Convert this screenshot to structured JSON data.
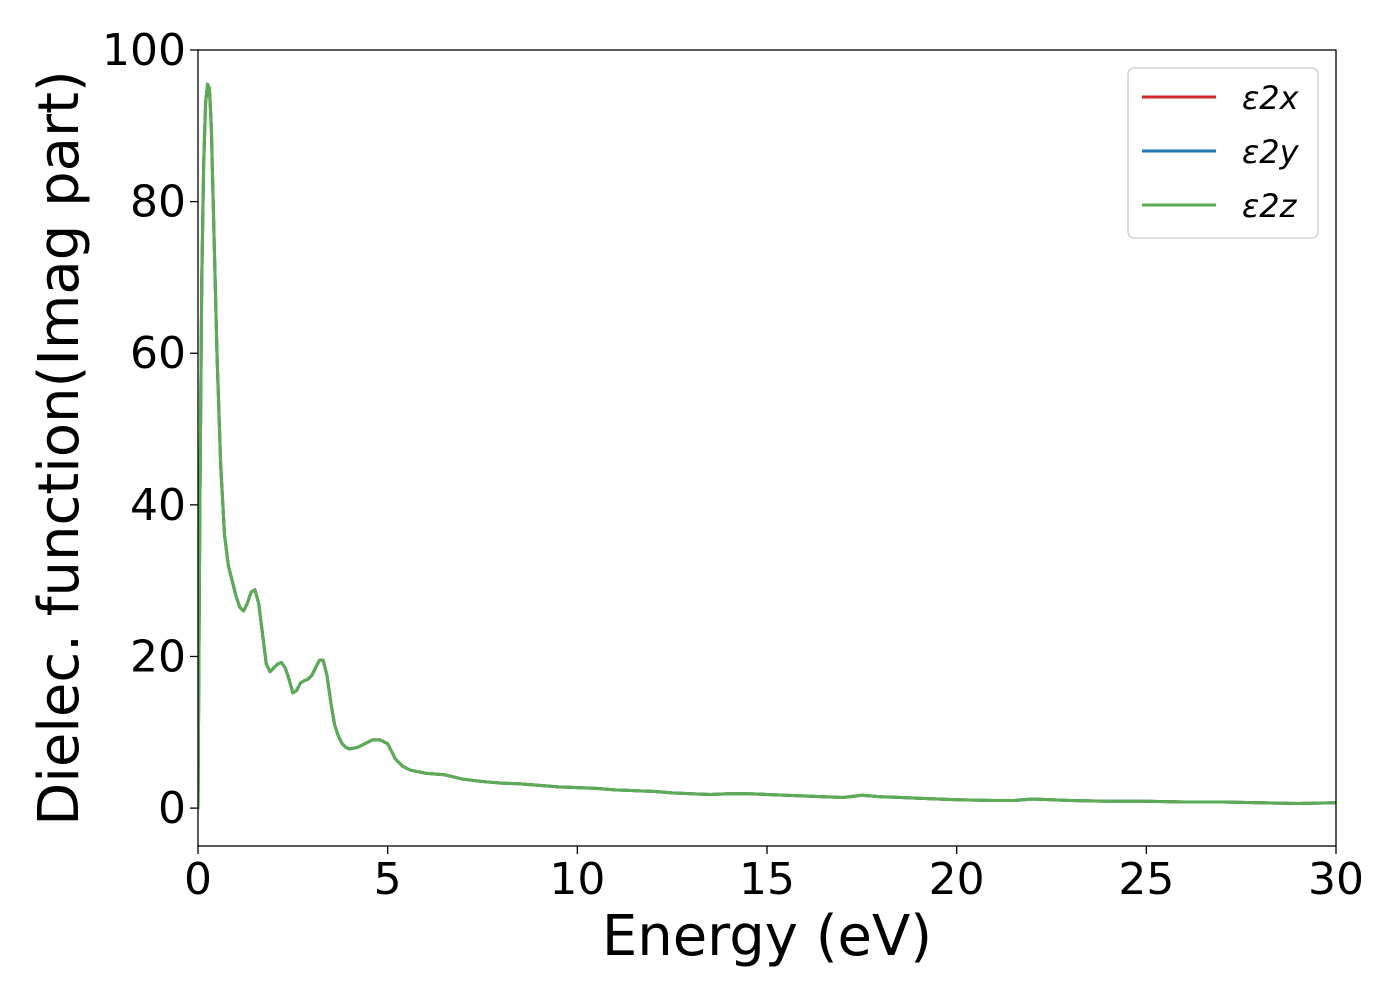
{
  "chart_data": {
    "type": "line",
    "title": "",
    "xlabel": "Energy (eV)",
    "ylabel": "Dielec. function(Imag part)",
    "xlim": [
      0,
      30
    ],
    "ylim": [
      -5,
      100
    ],
    "xticks": [
      0,
      5,
      10,
      15,
      20,
      25,
      30
    ],
    "yticks": [
      0,
      20,
      40,
      60,
      80,
      100
    ],
    "grid": false,
    "legend_position": "top-right",
    "series": [
      {
        "name": "ε2x",
        "color": "#d62728",
        "x": [
          0,
          0.05,
          0.1,
          0.15,
          0.2,
          0.25,
          0.3,
          0.35,
          0.4,
          0.5,
          0.6,
          0.7,
          0.8,
          0.9,
          1.0,
          1.1,
          1.2,
          1.3,
          1.4,
          1.5,
          1.6,
          1.7,
          1.8,
          1.9,
          2.0,
          2.1,
          2.2,
          2.3,
          2.4,
          2.5,
          2.6,
          2.7,
          2.8,
          2.9,
          3.0,
          3.1,
          3.2,
          3.3,
          3.4,
          3.5,
          3.6,
          3.7,
          3.8,
          3.9,
          4.0,
          4.2,
          4.4,
          4.6,
          4.8,
          5.0,
          5.1,
          5.2,
          5.4,
          5.6,
          5.8,
          6.0,
          6.5,
          7.0,
          7.5,
          8.0,
          8.5,
          9.0,
          9.5,
          10.0,
          10.5,
          11.0,
          11.5,
          12.0,
          12.5,
          13.0,
          13.5,
          14.0,
          14.5,
          15.0,
          15.5,
          16.0,
          16.5,
          17.0,
          17.5,
          18.0,
          19.0,
          20.0,
          21.0,
          21.5,
          22.0,
          23.0,
          24.0,
          25.0,
          26.0,
          27.0,
          28.0,
          29.0,
          30.0
        ],
        "y": [
          0,
          40,
          70,
          85,
          93,
          95.5,
          95,
          90,
          80,
          60,
          45,
          36,
          32,
          30,
          28,
          26.5,
          26,
          27,
          28.5,
          28.8,
          27,
          23,
          19,
          18,
          18.5,
          19,
          19.2,
          18.5,
          17,
          15.2,
          15.5,
          16.5,
          16.8,
          17,
          17.5,
          18.5,
          19.5,
          19.5,
          17.5,
          14,
          11,
          9.5,
          8.5,
          8,
          7.8,
          8,
          8.5,
          9,
          9,
          8.5,
          7.5,
          6.5,
          5.5,
          5,
          4.8,
          4.6,
          4.4,
          3.8,
          3.5,
          3.3,
          3.2,
          3.0,
          2.8,
          2.7,
          2.6,
          2.4,
          2.3,
          2.2,
          2.0,
          1.9,
          1.8,
          1.9,
          1.9,
          1.8,
          1.7,
          1.6,
          1.5,
          1.4,
          1.7,
          1.5,
          1.3,
          1.1,
          1.0,
          1.0,
          1.2,
          1.0,
          0.9,
          0.9,
          0.8,
          0.8,
          0.7,
          0.6,
          0.7
        ]
      },
      {
        "name": "ε2y",
        "color": "#1f77b4",
        "x": [
          0,
          0.05,
          0.1,
          0.15,
          0.2,
          0.25,
          0.3,
          0.35,
          0.4,
          0.5,
          0.6,
          0.7,
          0.8,
          0.9,
          1.0,
          1.1,
          1.2,
          1.3,
          1.4,
          1.5,
          1.6,
          1.7,
          1.8,
          1.9,
          2.0,
          2.1,
          2.2,
          2.3,
          2.4,
          2.5,
          2.6,
          2.7,
          2.8,
          2.9,
          3.0,
          3.1,
          3.2,
          3.3,
          3.4,
          3.5,
          3.6,
          3.7,
          3.8,
          3.9,
          4.0,
          4.2,
          4.4,
          4.6,
          4.8,
          5.0,
          5.1,
          5.2,
          5.4,
          5.6,
          5.8,
          6.0,
          6.5,
          7.0,
          7.5,
          8.0,
          8.5,
          9.0,
          9.5,
          10.0,
          10.5,
          11.0,
          11.5,
          12.0,
          12.5,
          13.0,
          13.5,
          14.0,
          14.5,
          15.0,
          15.5,
          16.0,
          16.5,
          17.0,
          17.5,
          18.0,
          19.0,
          20.0,
          21.0,
          21.5,
          22.0,
          23.0,
          24.0,
          25.0,
          26.0,
          27.0,
          28.0,
          29.0,
          30.0
        ],
        "y": [
          0,
          40,
          70,
          85,
          93,
          95.5,
          95,
          90,
          80,
          60,
          45,
          36,
          32,
          30,
          28,
          26.5,
          26,
          27,
          28.5,
          28.8,
          27,
          23,
          19,
          18,
          18.5,
          19,
          19.2,
          18.5,
          17,
          15.2,
          15.5,
          16.5,
          16.8,
          17,
          17.5,
          18.5,
          19.5,
          19.5,
          17.5,
          14,
          11,
          9.5,
          8.5,
          8,
          7.8,
          8,
          8.5,
          9,
          9,
          8.5,
          7.5,
          6.5,
          5.5,
          5,
          4.8,
          4.6,
          4.4,
          3.8,
          3.5,
          3.3,
          3.2,
          3.0,
          2.8,
          2.7,
          2.6,
          2.4,
          2.3,
          2.2,
          2.0,
          1.9,
          1.8,
          1.9,
          1.9,
          1.8,
          1.7,
          1.6,
          1.5,
          1.4,
          1.7,
          1.5,
          1.3,
          1.1,
          1.0,
          1.0,
          1.2,
          1.0,
          0.9,
          0.9,
          0.8,
          0.8,
          0.7,
          0.6,
          0.7
        ]
      },
      {
        "name": "ε2z",
        "color": "#5aad53",
        "x": [
          0,
          0.05,
          0.1,
          0.15,
          0.2,
          0.25,
          0.3,
          0.35,
          0.4,
          0.5,
          0.6,
          0.7,
          0.8,
          0.9,
          1.0,
          1.1,
          1.2,
          1.3,
          1.4,
          1.5,
          1.6,
          1.7,
          1.8,
          1.9,
          2.0,
          2.1,
          2.2,
          2.3,
          2.4,
          2.5,
          2.6,
          2.7,
          2.8,
          2.9,
          3.0,
          3.1,
          3.2,
          3.3,
          3.4,
          3.5,
          3.6,
          3.7,
          3.8,
          3.9,
          4.0,
          4.2,
          4.4,
          4.6,
          4.8,
          5.0,
          5.1,
          5.2,
          5.4,
          5.6,
          5.8,
          6.0,
          6.5,
          7.0,
          7.5,
          8.0,
          8.5,
          9.0,
          9.5,
          10.0,
          10.5,
          11.0,
          11.5,
          12.0,
          12.5,
          13.0,
          13.5,
          14.0,
          14.5,
          15.0,
          15.5,
          16.0,
          16.5,
          17.0,
          17.5,
          18.0,
          19.0,
          20.0,
          21.0,
          21.5,
          22.0,
          23.0,
          24.0,
          25.0,
          26.0,
          27.0,
          28.0,
          29.0,
          30.0
        ],
        "y": [
          0,
          40,
          70,
          85,
          93,
          95.5,
          95,
          90,
          80,
          60,
          45,
          36,
          32,
          30,
          28,
          26.5,
          26,
          27,
          28.5,
          28.8,
          27,
          23,
          19,
          18,
          18.5,
          19,
          19.2,
          18.5,
          17,
          15.2,
          15.5,
          16.5,
          16.8,
          17,
          17.5,
          18.5,
          19.5,
          19.5,
          17.5,
          14,
          11,
          9.5,
          8.5,
          8,
          7.8,
          8,
          8.5,
          9,
          9,
          8.5,
          7.5,
          6.5,
          5.5,
          5,
          4.8,
          4.6,
          4.4,
          3.8,
          3.5,
          3.3,
          3.2,
          3.0,
          2.8,
          2.7,
          2.6,
          2.4,
          2.3,
          2.2,
          2.0,
          1.9,
          1.8,
          1.9,
          1.9,
          1.8,
          1.7,
          1.6,
          1.5,
          1.4,
          1.7,
          1.5,
          1.3,
          1.1,
          1.0,
          1.0,
          1.2,
          1.0,
          0.9,
          0.9,
          0.8,
          0.8,
          0.7,
          0.6,
          0.7
        ]
      }
    ]
  }
}
